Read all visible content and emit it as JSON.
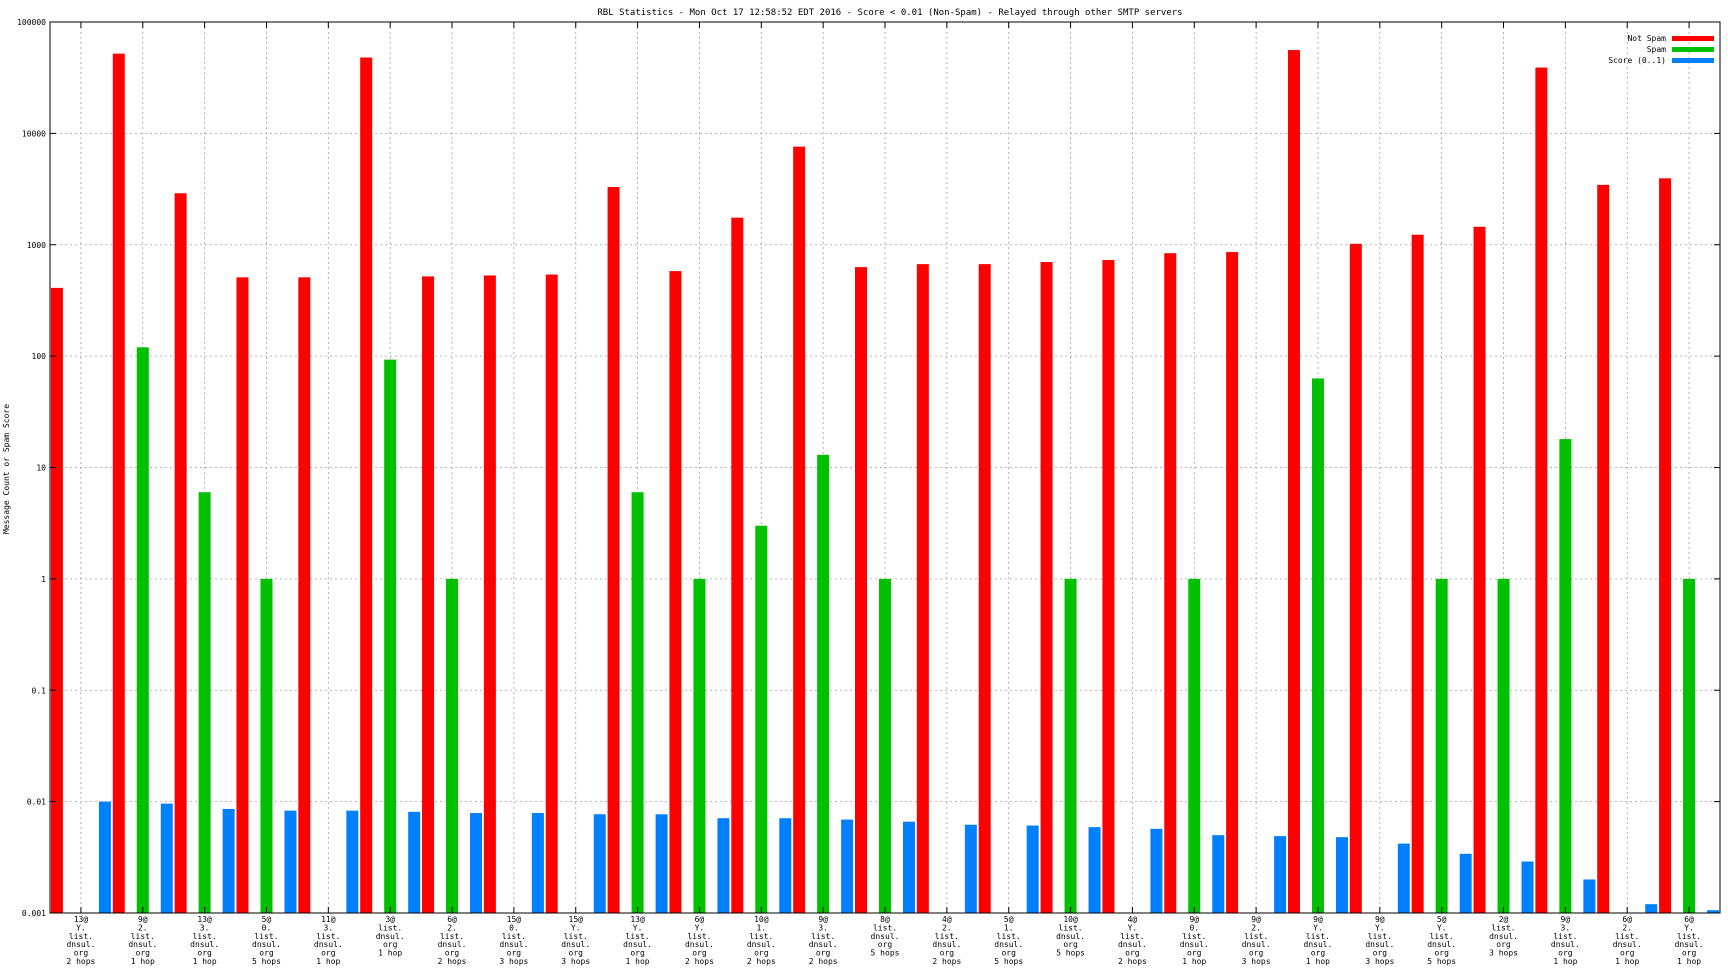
{
  "chart_data": {
    "type": "bar",
    "title": "RBL Statistics - Mon Oct 17 12:58:52 EDT 2016 - Score < 0.01 (Non-Spam) - Relayed through other SMTP servers",
    "ylabel": "Message Count or Spam Score",
    "xlabel": "",
    "yscale": "log",
    "ylim": [
      0.001,
      100000
    ],
    "yticks": [
      "100000",
      "10000",
      "1000",
      "100",
      "10",
      "1",
      "0.1",
      "0.01",
      "0.001"
    ],
    "grid": true,
    "legend_position": "top-right",
    "colors": {
      "Not Spam": "#ff0000",
      "Spam": "#00c000",
      "Score (0..1)": "#0080ff"
    },
    "categories": [
      [
        "13@",
        "Y.",
        "list.",
        "dnsul.",
        "org",
        "2 hops"
      ],
      [
        "9@",
        "2.",
        "list.",
        "dnsul.",
        "org",
        "1 hop"
      ],
      [
        "13@",
        "3.",
        "list.",
        "dnsul.",
        "org",
        "1 hop"
      ],
      [
        "5@",
        "0.",
        "list.",
        "dnsul.",
        "org",
        "5 hops"
      ],
      [
        "11@",
        "3.",
        "list.",
        "dnsul.",
        "org",
        "1 hop"
      ],
      [
        "3@",
        "list.",
        "dnsul.",
        "org",
        "1 hop"
      ],
      [
        "6@",
        "2.",
        "list.",
        "dnsul.",
        "org",
        "2 hops"
      ],
      [
        "15@",
        "0.",
        "list.",
        "dnsul.",
        "org",
        "3 hops"
      ],
      [
        "15@",
        "Y.",
        "list.",
        "dnsul.",
        "org",
        "3 hops"
      ],
      [
        "13@",
        "Y.",
        "list.",
        "dnsul.",
        "org",
        "1 hop"
      ],
      [
        "6@",
        "Y.",
        "list.",
        "dnsul.",
        "org",
        "2 hops"
      ],
      [
        "10@",
        "1.",
        "list.",
        "dnsul.",
        "org",
        "2 hops"
      ],
      [
        "9@",
        "3.",
        "list.",
        "dnsul.",
        "org",
        "2 hops"
      ],
      [
        "8@",
        "list.",
        "dnsul.",
        "org",
        "5 hops"
      ],
      [
        "4@",
        "2.",
        "list.",
        "dnsul.",
        "org",
        "2 hops"
      ],
      [
        "5@",
        "1.",
        "list.",
        "dnsul.",
        "org",
        "5 hops"
      ],
      [
        "10@",
        "list.",
        "dnsul.",
        "org",
        "5 hops"
      ],
      [
        "4@",
        "Y.",
        "list.",
        "dnsul.",
        "org",
        "2 hops"
      ],
      [
        "9@",
        "0.",
        "list.",
        "dnsul.",
        "org",
        "1 hop"
      ],
      [
        "9@",
        "2.",
        "list.",
        "dnsul.",
        "org",
        "3 hops"
      ],
      [
        "9@",
        "Y.",
        "list.",
        "dnsul.",
        "org",
        "1 hop"
      ],
      [
        "9@",
        "Y.",
        "list.",
        "dnsul.",
        "org",
        "3 hops"
      ],
      [
        "5@",
        "Y.",
        "list.",
        "dnsul.",
        "org",
        "5 hops"
      ],
      [
        "2@",
        "list.",
        "dnsul.",
        "org",
        "3 hops"
      ],
      [
        "9@",
        "3.",
        "list.",
        "dnsul.",
        "org",
        "1 hop"
      ],
      [
        "6@",
        "2.",
        "list.",
        "dnsul.",
        "org",
        "1 hop"
      ],
      [
        "6@",
        "Y.",
        "list.",
        "dnsul.",
        "org",
        "1 hop"
      ]
    ],
    "series": [
      {
        "name": "Not Spam",
        "values": [
          410,
          52000,
          2900,
          510,
          510,
          48000,
          520,
          530,
          540,
          3300,
          580,
          1750,
          7600,
          630,
          670,
          670,
          700,
          730,
          840,
          860,
          56000,
          1020,
          1230,
          1450,
          39000,
          3450,
          3950
        ]
      },
      {
        "name": "Spam",
        "values": [
          null,
          120,
          6,
          1,
          null,
          93,
          1,
          null,
          null,
          6,
          1,
          3,
          13,
          1,
          null,
          null,
          1,
          null,
          1,
          null,
          63,
          null,
          1,
          1,
          18,
          null,
          1
        ]
      },
      {
        "name": "Score (0..1)",
        "values": [
          0.01,
          0.0096,
          0.0086,
          0.0083,
          0.0083,
          0.0081,
          0.0079,
          0.0079,
          0.0077,
          0.0077,
          0.0071,
          0.0071,
          0.0069,
          0.0066,
          0.0062,
          0.0061,
          0.0059,
          0.0057,
          0.005,
          0.0049,
          0.0048,
          0.0042,
          0.0034,
          0.0029,
          0.002,
          0.0012,
          0.00106
        ]
      }
    ]
  }
}
